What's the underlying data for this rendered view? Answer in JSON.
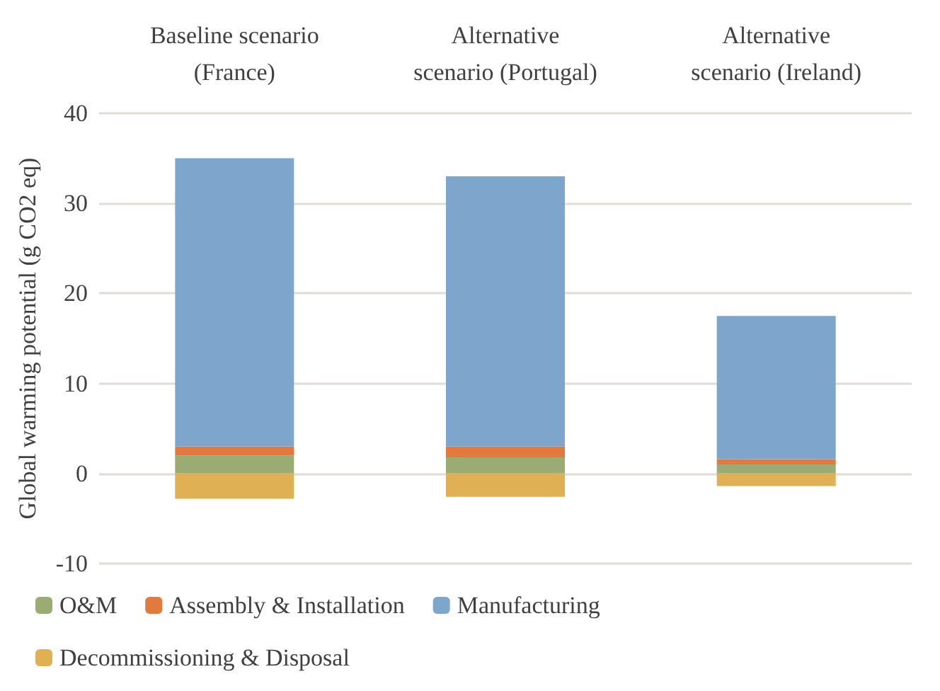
{
  "chart_data": {
    "type": "bar",
    "stacked": true,
    "ylabel": "Global warming potential (g CO2 eq)",
    "categories": [
      "Baseline scenario\n(France)",
      "Alternative\nscenario (Portugal)",
      "Alternative\nscenario (Ireland)"
    ],
    "series": [
      {
        "name": "O&M",
        "color": "#9bab74",
        "values": [
          2,
          1.8,
          1
        ]
      },
      {
        "name": "Assembly & Installation",
        "color": "#e2793f",
        "values": [
          1,
          1.2,
          0.6
        ]
      },
      {
        "name": "Manufacturing",
        "color": "#7ea6cc",
        "values": [
          32,
          30,
          15.9
        ]
      },
      {
        "name": "Decommissioning & Disposal",
        "color": "#e0b154",
        "values": [
          -2.8,
          -2.6,
          -1.4
        ]
      }
    ],
    "ylim": [
      -10,
      40
    ],
    "yticks": [
      -10,
      0,
      10,
      20,
      30,
      40
    ],
    "grid": "y",
    "legend": "bottom"
  }
}
